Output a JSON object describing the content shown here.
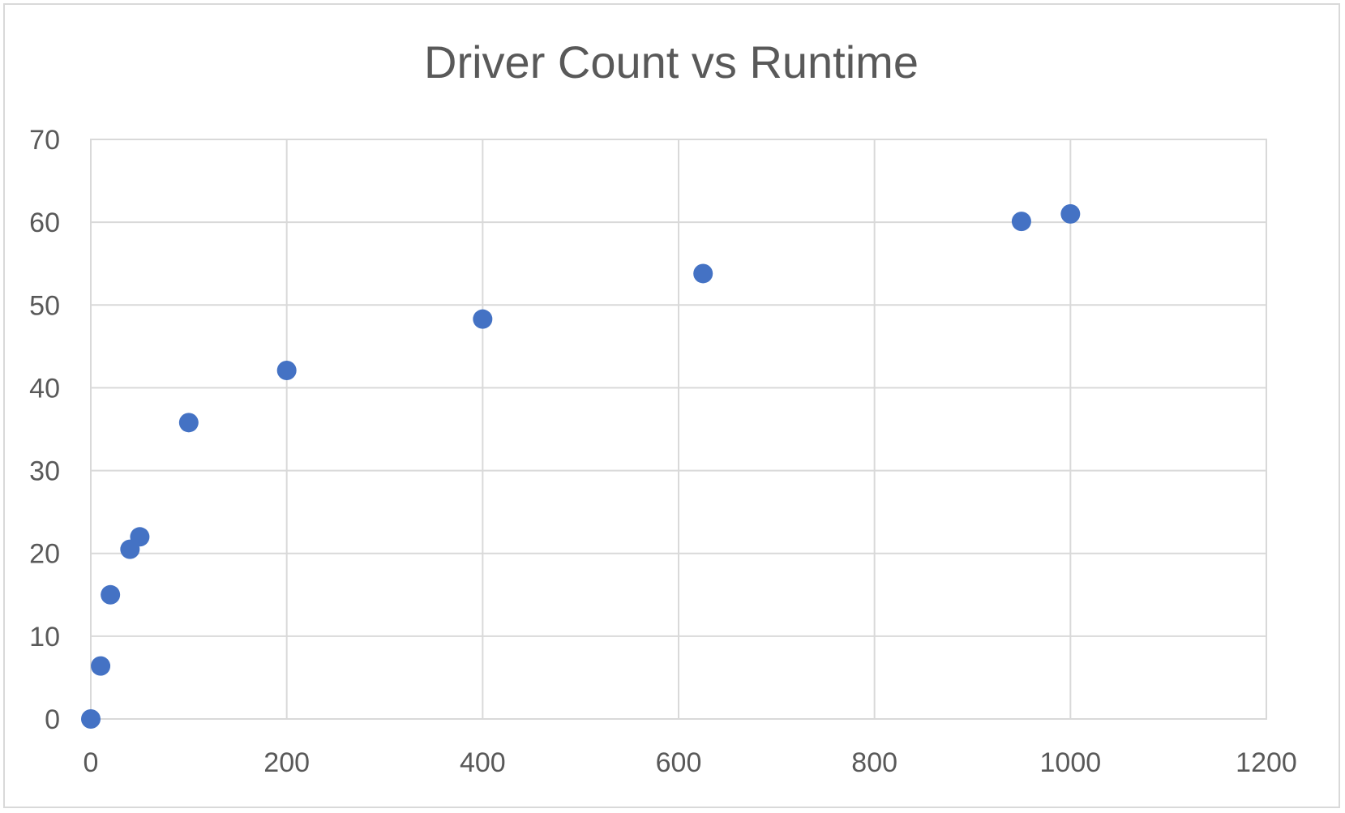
{
  "chart_data": {
    "type": "scatter",
    "title": "Driver Count vs Runtime",
    "xlabel": "",
    "ylabel": "",
    "xlim": [
      0,
      1200
    ],
    "ylim": [
      0,
      70
    ],
    "x_ticks": [
      0,
      200,
      400,
      600,
      800,
      1000,
      1200
    ],
    "y_ticks": [
      0,
      10,
      20,
      30,
      40,
      50,
      60,
      70
    ],
    "grid": true,
    "legend": "none",
    "marker_color": "#4472c4",
    "series": [
      {
        "points": [
          {
            "x": 0,
            "y": 0
          },
          {
            "x": 10,
            "y": 6.4
          },
          {
            "x": 20,
            "y": 15
          },
          {
            "x": 40,
            "y": 20.5
          },
          {
            "x": 50,
            "y": 22
          },
          {
            "x": 100,
            "y": 35.8
          },
          {
            "x": 200,
            "y": 42.1
          },
          {
            "x": 400,
            "y": 48.3
          },
          {
            "x": 625,
            "y": 53.8
          },
          {
            "x": 950,
            "y": 60.1
          },
          {
            "x": 1000,
            "y": 61
          }
        ]
      }
    ]
  }
}
